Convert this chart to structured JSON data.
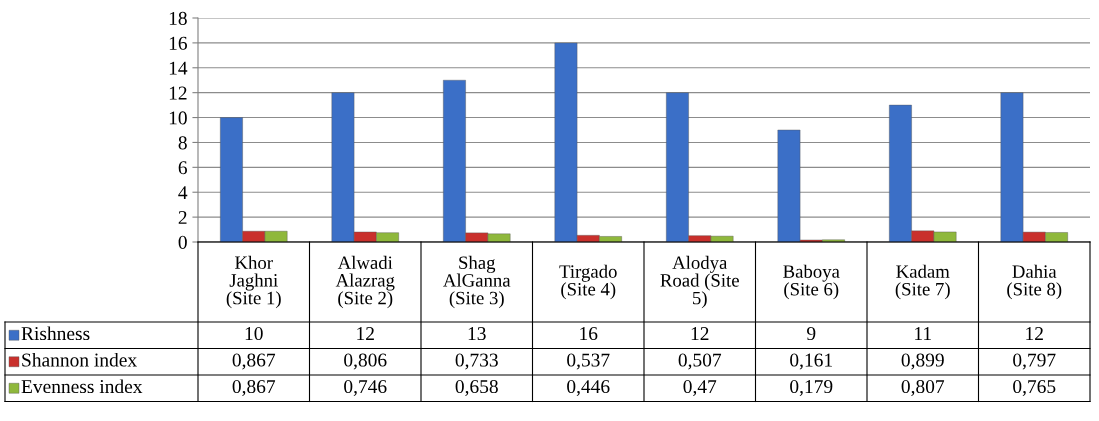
{
  "chart_data": {
    "type": "bar",
    "categories": [
      "Khor\nJaghni\n(Site 1)",
      "Alwadi\nAlazrag\n(Site 2)",
      "Shag\nAlGanna\n(Site 3)",
      "Tirgado\n(Site 4)",
      "Alodya\nRoad (Site\n5)",
      "Baboya\n(Site 6)",
      "Kadam\n(Site 7)",
      "Dahia\n(Site 8)"
    ],
    "series": [
      {
        "name": "Rishness",
        "color": "#3b6fc7",
        "values": [
          10,
          12,
          13,
          16,
          12,
          9,
          11,
          12
        ],
        "value_labels": [
          "10",
          "12",
          "13",
          "16",
          "12",
          "9",
          "11",
          "12"
        ]
      },
      {
        "name": "Shannon index",
        "color": "#c9302c",
        "values": [
          0.867,
          0.806,
          0.733,
          0.537,
          0.507,
          0.161,
          0.899,
          0.797
        ],
        "value_labels": [
          "0,867",
          "0,806",
          "0,733",
          "0,537",
          "0,507",
          "0,161",
          "0,899",
          "0,797"
        ]
      },
      {
        "name": "Evenness index",
        "color": "#8fb83c",
        "values": [
          0.867,
          0.746,
          0.658,
          0.446,
          0.47,
          0.179,
          0.807,
          0.765
        ],
        "value_labels": [
          "0,867",
          "0,746",
          "0,658",
          "0,446",
          "0,47",
          "0,179",
          "0,807",
          "0,765"
        ]
      }
    ],
    "ylim": [
      0,
      18
    ],
    "yticks": [
      0,
      2,
      4,
      6,
      8,
      10,
      12,
      14,
      16,
      18
    ],
    "grid": "y",
    "legend": "left"
  }
}
